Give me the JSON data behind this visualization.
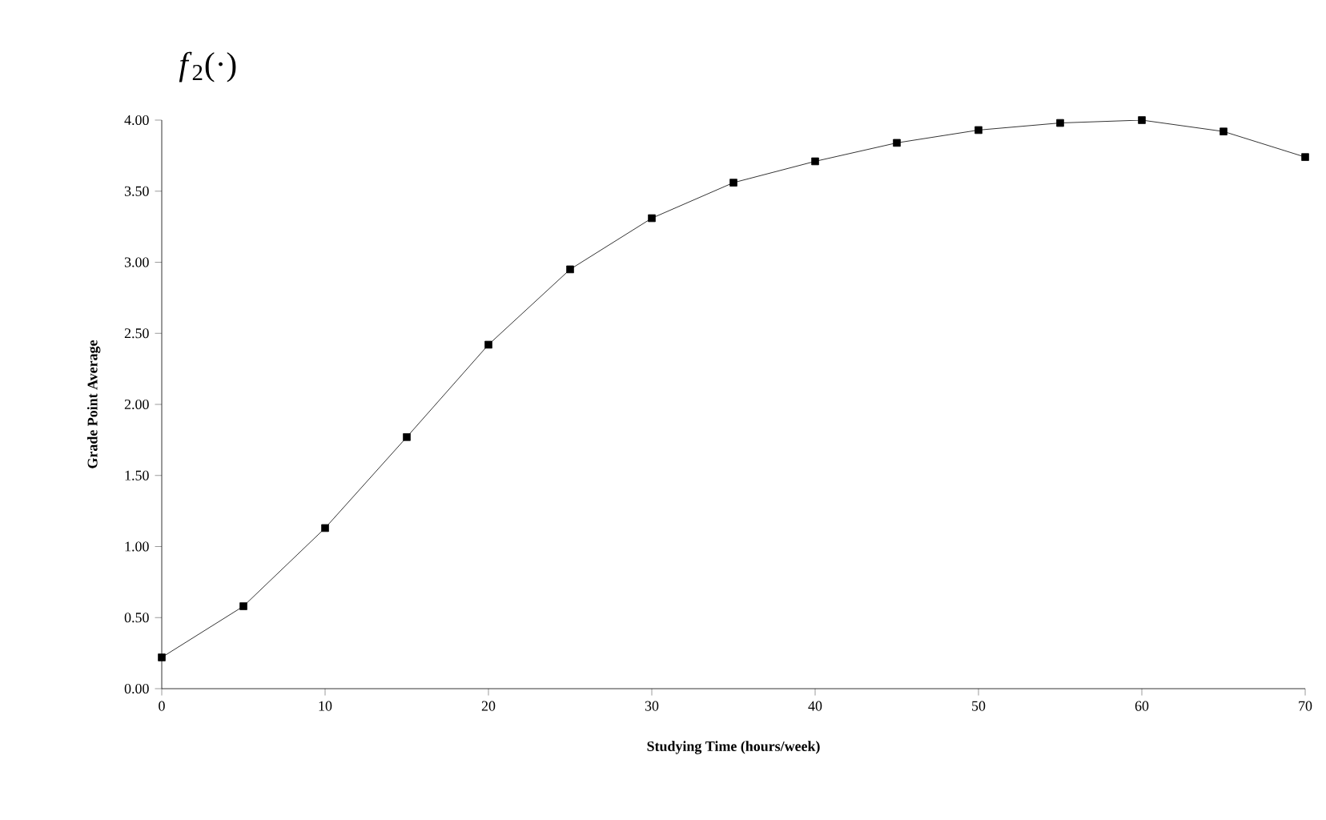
{
  "chart_data": {
    "type": "line",
    "title": "*f*$_{2}$(·)",
    "xlabel": "Studying Time (hours/week)",
    "ylabel": "Grade Point Average",
    "x": [
      0,
      5,
      10,
      15,
      20,
      25,
      30,
      35,
      40,
      45,
      50,
      55,
      60,
      65,
      70
    ],
    "series": [
      {
        "color": "#000000",
        "values": [
          0.22,
          0.58,
          1.13,
          1.77,
          2.42,
          2.95,
          3.31,
          3.56,
          3.71,
          3.84,
          3.93,
          3.98,
          4.0,
          3.92,
          3.74
        ]
      }
    ],
    "xlim": [
      0,
      70
    ],
    "ylim": [
      0,
      4
    ],
    "xticks": [
      0,
      10,
      20,
      30,
      40,
      50,
      60,
      70
    ],
    "yticks": [
      {
        "value": 0,
        "label": "0.00"
      },
      {
        "value": 0.5,
        "label": "0.50"
      },
      {
        "value": 1,
        "label": "1.00"
      },
      {
        "value": 1.5,
        "label": "1.50"
      },
      {
        "value": 2,
        "label": "2.00"
      },
      {
        "value": 2.5,
        "label": "2.50"
      },
      {
        "value": 3,
        "label": "3.00"
      },
      {
        "value": 3.5,
        "label": "3.50"
      },
      {
        "value": 4,
        "label": "4.00"
      }
    ],
    "grid": false,
    "marker": "square",
    "line_style": "solid"
  }
}
